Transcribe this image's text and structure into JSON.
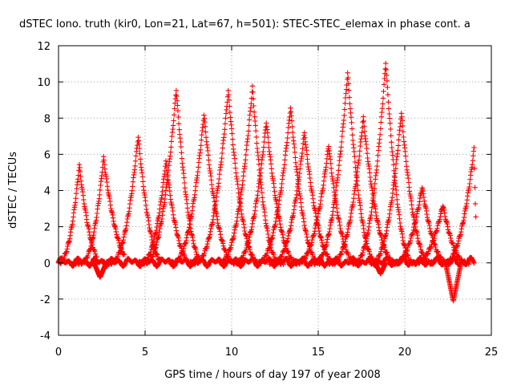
{
  "colors": {
    "series": "#ff0000",
    "grid": "#a0a0a0",
    "axis": "#000000",
    "background": "#ffffff"
  },
  "chart_data": {
    "type": "scatter",
    "title": "dSTEC Iono. truth (kir0, Lon=21, Lat=67, h=501): STEC-STEC_elemax in phase cont. a",
    "xlabel": "GPS time / hours of day 197 of year 2008",
    "ylabel": "dSTEC  / TECUs",
    "xlim": [
      0,
      25
    ],
    "ylim": [
      -4,
      12
    ],
    "grid": true,
    "marker": "plus",
    "x_ticks": [
      0,
      5,
      10,
      15,
      20,
      25
    ],
    "x_tick_labels": [
      "0",
      "5",
      "10",
      "15",
      "20",
      "25"
    ],
    "y_ticks": [
      -4,
      -2,
      0,
      2,
      4,
      6,
      8,
      10,
      12
    ],
    "y_tick_labels": [
      "-4",
      "-2",
      "0",
      "2",
      "4",
      "6",
      "8",
      "10",
      "12"
    ],
    "sample_step_hours": 0.025,
    "arcs": [
      {
        "peak_x": 1.2,
        "peak_y": 5.4,
        "rise_h": 1.2,
        "fall_h": 1.4,
        "start_x": 0.0,
        "end_x": 2.2
      },
      {
        "peak_x": 2.6,
        "peak_y": 5.8,
        "rise_h": 1.3,
        "fall_h": 1.7,
        "start_x": 0.8,
        "end_x": 3.8
      },
      {
        "peak_x": 4.6,
        "peak_y": 7.0,
        "rise_h": 1.6,
        "fall_h": 1.5,
        "start_x": 2.6,
        "end_x": 5.9
      },
      {
        "peak_x": 6.8,
        "peak_y": 9.6,
        "rise_h": 1.8,
        "fall_h": 1.6,
        "start_x": 4.6,
        "end_x": 8.1
      },
      {
        "peak_x": 6.2,
        "peak_y": 5.6,
        "rise_h": 1.4,
        "fall_h": 1.5,
        "start_x": 4.5,
        "end_x": 7.4
      },
      {
        "peak_x": 8.4,
        "peak_y": 8.2,
        "rise_h": 1.8,
        "fall_h": 1.8,
        "start_x": 6.4,
        "end_x": 10.0
      },
      {
        "peak_x": 9.8,
        "peak_y": 9.5,
        "rise_h": 1.9,
        "fall_h": 1.8,
        "start_x": 7.5,
        "end_x": 11.4
      },
      {
        "peak_x": 11.2,
        "peak_y": 9.7,
        "rise_h": 1.9,
        "fall_h": 1.6,
        "start_x": 9.3,
        "end_x": 13.0
      },
      {
        "peak_x": 12.0,
        "peak_y": 7.8,
        "rise_h": 1.8,
        "fall_h": 1.8,
        "start_x": 10.0,
        "end_x": 13.8
      },
      {
        "peak_x": 13.4,
        "peak_y": 8.6,
        "rise_h": 1.9,
        "fall_h": 1.7,
        "start_x": 11.4,
        "end_x": 15.2
      },
      {
        "peak_x": 14.2,
        "peak_y": 7.2,
        "rise_h": 1.8,
        "fall_h": 1.8,
        "start_x": 12.2,
        "end_x": 16.0
      },
      {
        "peak_x": 15.6,
        "peak_y": 6.5,
        "rise_h": 1.8,
        "fall_h": 1.6,
        "start_x": 13.6,
        "end_x": 17.2
      },
      {
        "peak_x": 16.7,
        "peak_y": 10.5,
        "rise_h": 1.9,
        "fall_h": 1.7,
        "start_x": 14.6,
        "end_x": 18.4
      },
      {
        "peak_x": 17.6,
        "peak_y": 8.0,
        "rise_h": 1.8,
        "fall_h": 1.9,
        "start_x": 15.6,
        "end_x": 19.6
      },
      {
        "peak_x": 18.9,
        "peak_y": 11.1,
        "rise_h": 1.8,
        "fall_h": 1.6,
        "start_x": 17.0,
        "end_x": 20.6
      },
      {
        "peak_x": 19.8,
        "peak_y": 8.3,
        "rise_h": 1.7,
        "fall_h": 1.7,
        "start_x": 18.0,
        "end_x": 21.6
      },
      {
        "peak_x": 21.0,
        "peak_y": 4.2,
        "rise_h": 1.6,
        "fall_h": 1.5,
        "start_x": 19.2,
        "end_x": 22.6
      },
      {
        "peak_x": 22.2,
        "peak_y": 3.2,
        "rise_h": 1.6,
        "fall_h": 1.4,
        "start_x": 20.6,
        "end_x": 23.7
      },
      {
        "peak_x": 24.0,
        "peak_y": 6.3,
        "rise_h": 1.7,
        "fall_h": 0.3,
        "start_x": 22.3,
        "end_x": 24.1
      }
    ],
    "dips": [
      {
        "x": 2.4,
        "y": -0.8,
        "width_h": 0.35
      },
      {
        "x": 22.8,
        "y": -2.1,
        "width_h": 0.45
      },
      {
        "x": 18.6,
        "y": -0.6,
        "width_h": 0.3
      }
    ]
  }
}
